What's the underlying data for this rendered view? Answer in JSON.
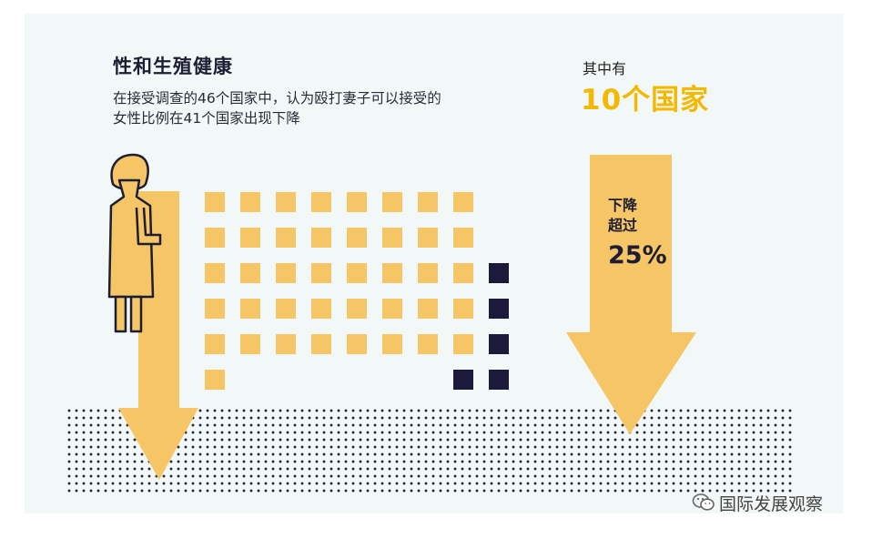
{
  "header": {
    "title": "性和生殖健康",
    "description_line1": "在接受调查的46个国家中，认为殴打妻子可以接受的",
    "description_line2": "女性比例在41个国家出现下降"
  },
  "highlight": {
    "prefix": "其中有",
    "count_text": "10个国家",
    "callout_line1": "下降",
    "callout_line2": "超过",
    "callout_value": "25%"
  },
  "grid": {
    "total_countries": 46,
    "countries_decline": 41,
    "countries_no_decline": 5,
    "color_decline": "#f5c566",
    "color_no_decline": "#1b1a3b"
  },
  "colors": {
    "arrow": "#f5c566",
    "figure": "#f5c566",
    "outline": "#1d1d33",
    "accent": "#f5b800"
  },
  "brand": {
    "icon": "wechat-icon",
    "name": "国际发展观察"
  }
}
